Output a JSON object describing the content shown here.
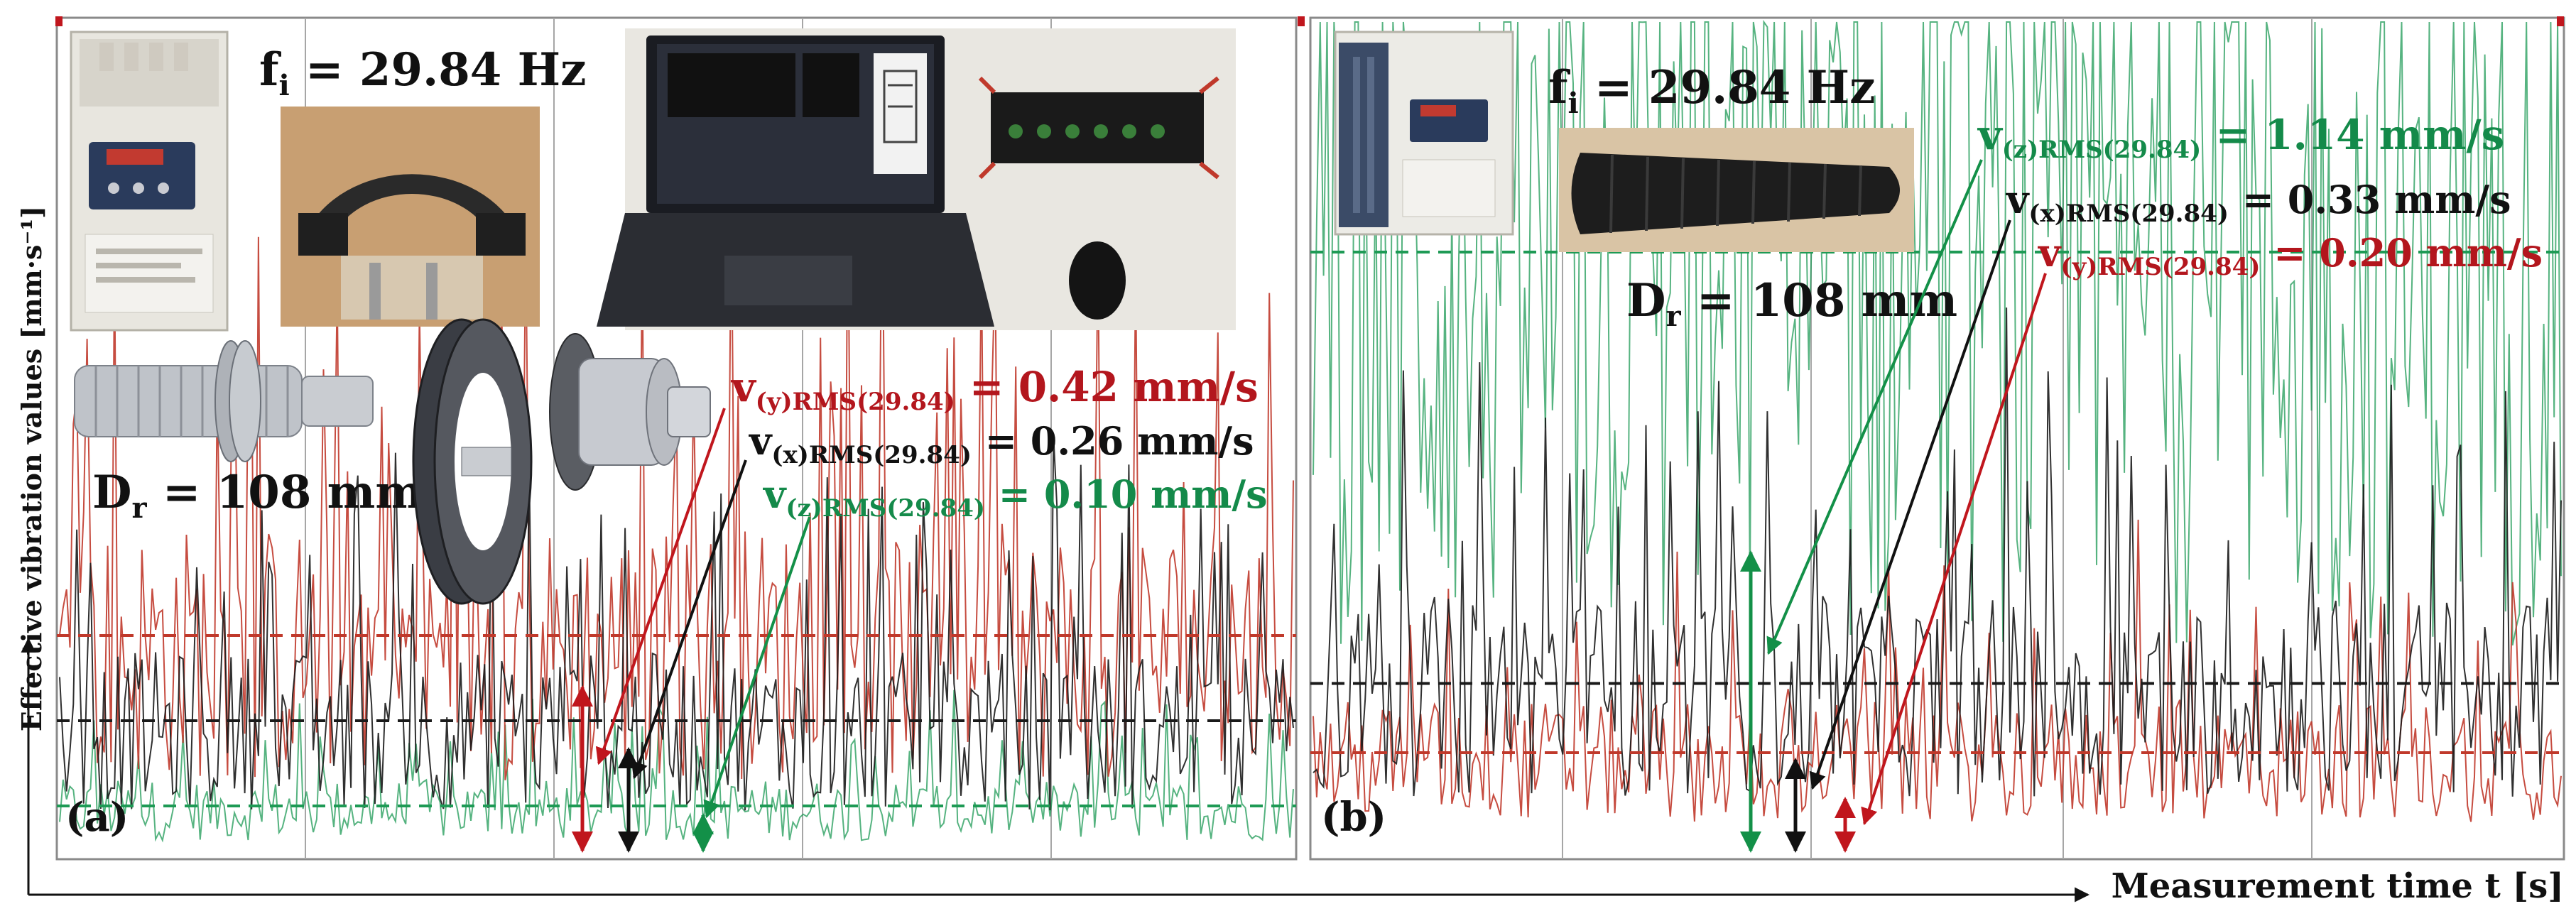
{
  "y_axis_label": "Effective vibration values [mm·s⁻¹]",
  "x_axis_label": "Measurement time t [s]",
  "colors": {
    "y_series": "#c0392b",
    "x_series": "#1a1a1a",
    "z_series": "#1e9a55",
    "y_text": "#b3161d",
    "z_text": "#148a4a",
    "panel_border": "#8a8a8a",
    "grid": "#a6a6a6"
  },
  "panels": [
    {
      "tag": "(a)",
      "freq_main": "f",
      "freq_sub": "i",
      "freq_value": " = 29.84 Hz",
      "diam_main": "D",
      "diam_sub": "r",
      "diam_value": " = 108 mm",
      "ann_y_main": "v",
      "ann_y_sub": "(y)RMS(29.84)",
      "ann_y_value": " = 0.42 mm/s",
      "ann_x_main": "v",
      "ann_x_sub": "(x)RMS(29.84)",
      "ann_x_value": " = 0.26 mm/s",
      "ann_z_main": "v",
      "ann_z_sub": "(z)RMS(29.84)",
      "ann_z_value": " = 0.10 mm/s",
      "photos": [
        "inverter-photo",
        "roller-ring-photo",
        "laptop-daq-photo",
        "roller-cad-model",
        "ring-cad-model",
        "flange-cad-model"
      ]
    },
    {
      "tag": "(b)",
      "freq_main": "f",
      "freq_sub": "i",
      "freq_value": " = 29.84 Hz",
      "diam_main": "D",
      "diam_sub": "r",
      "diam_value": " = 108 mm",
      "ann_z_main": "v",
      "ann_z_sub": "(z)RMS(29.84)",
      "ann_z_value": " = 1.14 mm/s",
      "ann_x_main": "v",
      "ann_x_sub": "(x)RMS(29.84)",
      "ann_x_value": " = 0.33 mm/s",
      "ann_y_main": "v",
      "ann_y_sub": "(y)RMS(29.84)",
      "ann_y_value": " = 0.20 mm/s",
      "photos": [
        "inverter-photo",
        "rubber-roller-photo"
      ]
    }
  ],
  "chart_data": [
    {
      "type": "line",
      "title": "",
      "xlabel": "Measurement time t [s]",
      "ylabel": "Effective vibration values [mm·s⁻¹]",
      "grid": true,
      "series": [
        {
          "name": "v(y)RMS(29.84)",
          "rms": 0.42
        },
        {
          "name": "v(x)RMS(29.84)",
          "rms": 0.26
        },
        {
          "name": "v(z)RMS(29.84)",
          "rms": 0.1
        }
      ]
    },
    {
      "type": "line",
      "title": "",
      "xlabel": "Measurement time t [s]",
      "ylabel": "Effective vibration values [mm·s⁻¹]",
      "grid": true,
      "series": [
        {
          "name": "v(z)RMS(29.84)",
          "rms": 1.14
        },
        {
          "name": "v(x)RMS(29.84)",
          "rms": 0.33
        },
        {
          "name": "v(y)RMS(29.84)",
          "rms": 0.2
        }
      ]
    }
  ]
}
